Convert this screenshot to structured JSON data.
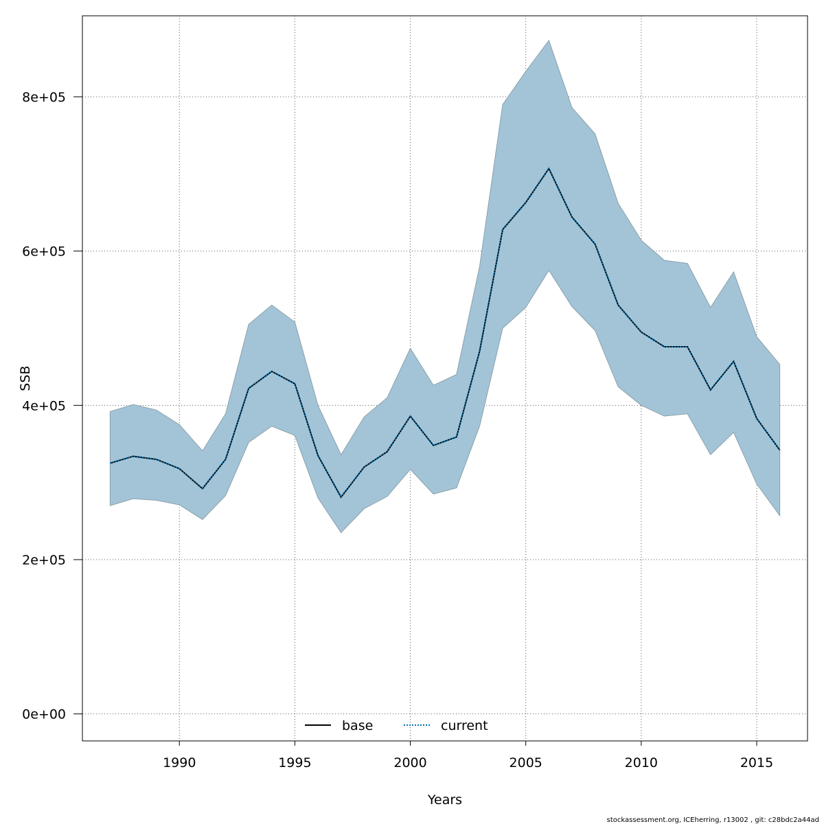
{
  "chart_data": {
    "type": "line",
    "xlabel": "Years",
    "ylabel": "SSB",
    "xlim": [
      1985.8,
      2017.2
    ],
    "ylim": [
      -35000,
      905000
    ],
    "x_ticks": [
      1990,
      1995,
      2000,
      2005,
      2010,
      2015
    ],
    "x_tick_labels": [
      "1990",
      "1995",
      "2000",
      "2005",
      "2010",
      "2015"
    ],
    "y_ticks": [
      0,
      200000,
      400000,
      600000,
      800000
    ],
    "y_tick_labels": [
      "0e+00",
      "2e+05",
      "4e+05",
      "6e+05",
      "8e+05"
    ],
    "grid": true,
    "legend_position": "bottom",
    "x": [
      1987,
      1988,
      1989,
      1990,
      1991,
      1992,
      1993,
      1994,
      1995,
      1996,
      1997,
      1998,
      1999,
      2000,
      2001,
      2002,
      2003,
      2004,
      2005,
      2006,
      2007,
      2008,
      2009,
      2010,
      2011,
      2012,
      2013,
      2014,
      2015,
      2016
    ],
    "series": [
      {
        "name": "base",
        "style": "solid",
        "color": "#000000",
        "values": [
          325000,
          334000,
          330000,
          318000,
          292000,
          330000,
          422000,
          444000,
          428000,
          335000,
          281000,
          320000,
          340000,
          386000,
          348000,
          359000,
          470000,
          628000,
          663000,
          707000,
          644000,
          609000,
          530000,
          495000,
          476000,
          476000,
          420000,
          457000,
          383000,
          342000
        ]
      },
      {
        "name": "current",
        "style": "dotted",
        "color": "#0072B2",
        "values": [
          325000,
          334000,
          330000,
          318000,
          292000,
          330000,
          422000,
          444000,
          428000,
          335000,
          281000,
          320000,
          340000,
          386000,
          348000,
          359000,
          470000,
          628000,
          663000,
          707000,
          644000,
          609000,
          530000,
          495000,
          476000,
          476000,
          420000,
          457000,
          383000,
          342000
        ]
      }
    ],
    "band": {
      "color": "#A3C4D6",
      "upper": [
        392000,
        401000,
        394000,
        375000,
        341000,
        389000,
        505000,
        530000,
        508000,
        400000,
        336000,
        385000,
        410000,
        474000,
        426000,
        440000,
        580000,
        790000,
        833000,
        873000,
        786000,
        752000,
        662000,
        614000,
        588000,
        584000,
        527000,
        573000,
        489000,
        453000
      ],
      "lower": [
        270000,
        279000,
        277000,
        271000,
        252000,
        283000,
        352000,
        373000,
        361000,
        280000,
        235000,
        266000,
        282000,
        317000,
        285000,
        293000,
        373000,
        500000,
        527000,
        575000,
        528000,
        497000,
        424000,
        400000,
        386000,
        389000,
        336000,
        365000,
        298000,
        257000
      ]
    }
  },
  "footer_text": "stockassessment.org, ICEherring, r13002 , git: c28bdc2a44ad"
}
